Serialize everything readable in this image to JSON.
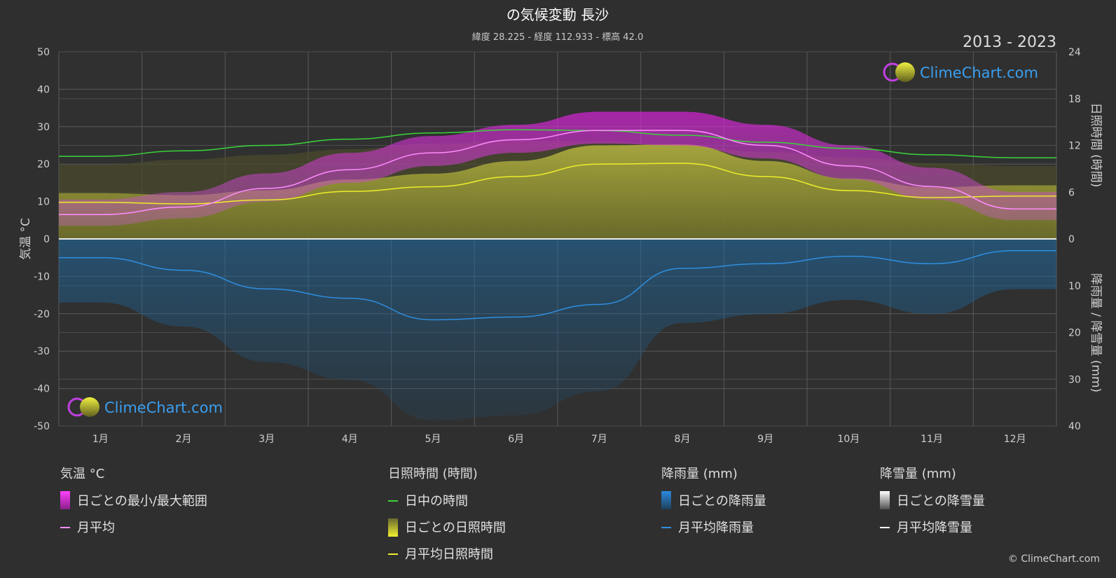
{
  "header": {
    "title": "の気候変動 長沙",
    "subtitle": "緯度 28.225 - 経度 112.933 - 標高 42.0",
    "years": "2013 - 2023"
  },
  "axes": {
    "left_title": "気温 °C",
    "right_top_title": "日照時間 (時間)",
    "right_bottom_title": "降雨量 / 降雪量 (mm)"
  },
  "logo": {
    "text": "ClimeChart.com"
  },
  "copyright": "© ClimeChart.com",
  "legend": {
    "temperature": {
      "heading": "気温 °C",
      "range": "日ごとの最小/最大範囲",
      "avg": "月平均"
    },
    "sunshine": {
      "heading": "日照時間 (時間)",
      "daylight": "日中の時間",
      "daily": "日ごとの日照時間",
      "avg": "月平均日照時間"
    },
    "rain": {
      "heading": "降雨量 (mm)",
      "daily": "日ごとの降雨量",
      "avg": "月平均降雨量"
    },
    "snow": {
      "heading": "降雪量 (mm)",
      "daily": "日ごとの降雪量",
      "avg": "月平均降雪量"
    }
  },
  "colors": {
    "background": "#2f2f2f",
    "temp_range": "#e020e0",
    "temp_avg": "#ff8cff",
    "daylight": "#3ad43a",
    "sunshine_fill": "#a8a838",
    "sunshine_avg": "#eded2a",
    "rain_fill": "#1f6ea8",
    "rain_avg": "#2e8fe0",
    "snow_avg": "#ffffff",
    "grid": "#5a5a5a"
  },
  "chart_data": {
    "type": "area",
    "categories": [
      "1月",
      "2月",
      "3月",
      "4月",
      "5月",
      "6月",
      "7月",
      "8月",
      "9月",
      "10月",
      "11月",
      "12月"
    ],
    "left_axis": {
      "label": "気温 °C",
      "range": [
        -50,
        50
      ],
      "ticks": [
        50,
        40,
        30,
        20,
        10,
        0,
        -10,
        -20,
        -30,
        -40,
        -50
      ]
    },
    "right_axis_sun": {
      "label": "日照時間 (時間)",
      "range": [
        0,
        24
      ],
      "ticks": [
        24,
        18,
        12,
        6,
        0
      ]
    },
    "right_axis_precip": {
      "label": "降雨量 / 降雪量 (mm)",
      "range": [
        0,
        40
      ],
      "ticks": [
        0,
        10,
        20,
        30,
        40
      ]
    },
    "series": [
      {
        "name": "日中の時間",
        "axis": "sun",
        "values": [
          10.6,
          11.3,
          12.0,
          12.8,
          13.6,
          14.0,
          13.9,
          13.3,
          12.4,
          11.6,
          10.8,
          10.4
        ]
      },
      {
        "name": "月平均日照時間",
        "axis": "sun",
        "values": [
          4.7,
          4.5,
          5.0,
          6.1,
          6.7,
          8.0,
          9.6,
          9.7,
          8.0,
          6.2,
          5.3,
          5.5
        ]
      },
      {
        "name": "月平均",
        "axis": "temp",
        "values": [
          6.5,
          8.5,
          13.5,
          18.5,
          23.0,
          26.5,
          29.0,
          29.0,
          25.0,
          19.5,
          14.0,
          8.0
        ]
      },
      {
        "name": "日ごとの最小/最大範囲 (min)",
        "axis": "temp",
        "values": [
          3.5,
          5.5,
          10.0,
          15.0,
          19.5,
          23.0,
          25.5,
          25.0,
          21.5,
          16.0,
          10.5,
          5.0
        ]
      },
      {
        "name": "日ごとの最小/最大範囲 (max)",
        "axis": "temp",
        "values": [
          10.5,
          12.5,
          17.5,
          23.0,
          27.5,
          30.5,
          34.0,
          34.0,
          30.5,
          25.0,
          19.0,
          12.5
        ]
      },
      {
        "name": "月平均降雨量",
        "axis": "precip",
        "values": [
          4.0,
          6.7,
          10.7,
          12.7,
          17.3,
          16.7,
          14.0,
          6.3,
          5.3,
          3.7,
          5.3,
          2.5
        ]
      },
      {
        "name": "月平均降雪量",
        "axis": "precip",
        "values": [
          0,
          0,
          0,
          0,
          0,
          0,
          0,
          0,
          0,
          0,
          0,
          0
        ]
      }
    ]
  }
}
